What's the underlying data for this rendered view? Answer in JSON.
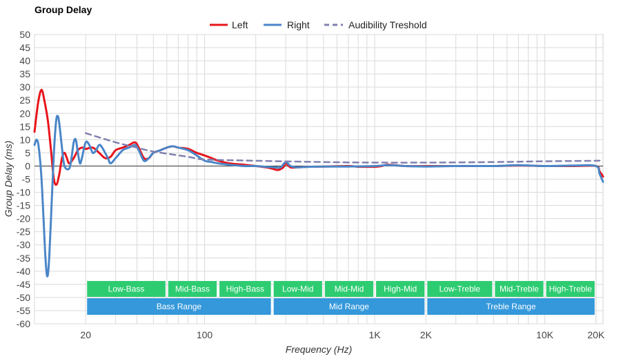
{
  "chart_data": {
    "type": "line",
    "title": "Group Delay",
    "xlabel": "Frequency (Hz)",
    "ylabel": "Group Delay (ms)",
    "x_scale": "log",
    "xlim": [
      10,
      22000
    ],
    "ylim": [
      -60,
      50
    ],
    "y_ticks": [
      50,
      45,
      40,
      35,
      30,
      25,
      20,
      15,
      10,
      5,
      0,
      -5,
      -10,
      -15,
      -20,
      -25,
      -30,
      -35,
      -40,
      -45,
      -50,
      -55,
      -60
    ],
    "x_tick_labels": [
      {
        "value": 20,
        "label": "20"
      },
      {
        "value": 100,
        "label": "100"
      },
      {
        "value": 1000,
        "label": "1K"
      },
      {
        "value": 2000,
        "label": "2K"
      },
      {
        "value": 10000,
        "label": "10K"
      },
      {
        "value": 20000,
        "label": "20K"
      }
    ],
    "grid": true,
    "legend_position": "top-center",
    "series": [
      {
        "name": "Left",
        "color": "#e8141b",
        "style": "solid",
        "points": [
          [
            10,
            13
          ],
          [
            10.5,
            24
          ],
          [
            11,
            29
          ],
          [
            11.5,
            24
          ],
          [
            12,
            17
          ],
          [
            12.5,
            6
          ],
          [
            13,
            -5
          ],
          [
            13.5,
            -7
          ],
          [
            14,
            -3
          ],
          [
            14.5,
            3
          ],
          [
            15,
            5
          ],
          [
            15.5,
            3
          ],
          [
            16,
            1
          ],
          [
            17,
            3
          ],
          [
            18,
            6
          ],
          [
            19,
            7
          ],
          [
            20,
            6.5
          ],
          [
            22,
            7
          ],
          [
            24,
            5
          ],
          [
            26,
            3
          ],
          [
            28,
            3.5
          ],
          [
            30,
            6
          ],
          [
            33,
            7
          ],
          [
            36,
            8
          ],
          [
            39,
            9
          ],
          [
            41,
            7
          ],
          [
            44,
            3
          ],
          [
            47,
            3
          ],
          [
            50,
            5
          ],
          [
            55,
            6
          ],
          [
            60,
            7
          ],
          [
            65,
            7.5
          ],
          [
            70,
            7
          ],
          [
            80,
            6.5
          ],
          [
            90,
            5
          ],
          [
            100,
            4
          ],
          [
            110,
            3
          ],
          [
            120,
            2
          ],
          [
            140,
            1
          ],
          [
            170,
            0.5
          ],
          [
            200,
            0
          ],
          [
            230,
            -0.5
          ],
          [
            250,
            -1
          ],
          [
            270,
            -1.5
          ],
          [
            290,
            -0.5
          ],
          [
            300,
            1
          ],
          [
            320,
            -0.5
          ],
          [
            350,
            -0.5
          ],
          [
            400,
            -0.3
          ],
          [
            500,
            -0.2
          ],
          [
            700,
            0
          ],
          [
            800,
            -0.3
          ],
          [
            900,
            -0.3
          ],
          [
            1000,
            -0.3
          ],
          [
            1100,
            0
          ],
          [
            1200,
            0.5
          ],
          [
            1500,
            0
          ],
          [
            2000,
            0
          ],
          [
            3000,
            0
          ],
          [
            5000,
            0
          ],
          [
            7000,
            0.2
          ],
          [
            10000,
            0
          ],
          [
            15000,
            0
          ],
          [
            20000,
            0
          ],
          [
            21000,
            -2
          ],
          [
            22000,
            -4
          ]
        ]
      },
      {
        "name": "Right",
        "color": "#4a86c8",
        "style": "solid",
        "points": [
          [
            10,
            8
          ],
          [
            10.3,
            10
          ],
          [
            10.6,
            7
          ],
          [
            11,
            -5
          ],
          [
            11.3,
            -20
          ],
          [
            11.6,
            -35
          ],
          [
            11.9,
            -42
          ],
          [
            12.2,
            -35
          ],
          [
            12.6,
            -15
          ],
          [
            13,
            5
          ],
          [
            13.4,
            17
          ],
          [
            13.7,
            19
          ],
          [
            14,
            16
          ],
          [
            14.5,
            7
          ],
          [
            15,
            0
          ],
          [
            16,
            -1
          ],
          [
            16.5,
            3
          ],
          [
            17,
            9
          ],
          [
            17.5,
            10
          ],
          [
            18,
            5
          ],
          [
            18.5,
            1
          ],
          [
            19,
            3
          ],
          [
            20,
            9
          ],
          [
            21,
            8
          ],
          [
            22,
            5
          ],
          [
            23,
            6
          ],
          [
            24,
            8
          ],
          [
            25,
            7
          ],
          [
            27,
            3
          ],
          [
            28,
            1
          ],
          [
            30,
            3
          ],
          [
            33,
            6
          ],
          [
            36,
            7
          ],
          [
            39,
            8
          ],
          [
            41,
            6
          ],
          [
            44,
            2
          ],
          [
            47,
            3
          ],
          [
            50,
            5
          ],
          [
            55,
            6
          ],
          [
            60,
            7
          ],
          [
            65,
            7.5
          ],
          [
            70,
            7
          ],
          [
            80,
            6
          ],
          [
            90,
            4
          ],
          [
            100,
            2
          ],
          [
            110,
            1.5
          ],
          [
            120,
            1
          ],
          [
            140,
            0.5
          ],
          [
            170,
            0
          ],
          [
            200,
            0
          ],
          [
            230,
            -0.3
          ],
          [
            260,
            -0.5
          ],
          [
            280,
            -0.5
          ],
          [
            300,
            1.5
          ],
          [
            320,
            0
          ],
          [
            350,
            -0.5
          ],
          [
            400,
            -0.3
          ],
          [
            500,
            -0.2
          ],
          [
            700,
            -0.2
          ],
          [
            1000,
            0
          ],
          [
            1200,
            0.3
          ],
          [
            1500,
            0
          ],
          [
            2000,
            -0.2
          ],
          [
            3000,
            0
          ],
          [
            5000,
            0
          ],
          [
            7000,
            0.3
          ],
          [
            10000,
            0
          ],
          [
            15000,
            0.2
          ],
          [
            20000,
            0
          ],
          [
            21000,
            -3
          ],
          [
            22000,
            -6
          ]
        ]
      },
      {
        "name": "Audibility Treshold",
        "color": "#8080b0",
        "style": "dashed",
        "points": [
          [
            20,
            12.5
          ],
          [
            30,
            9
          ],
          [
            40,
            7
          ],
          [
            50,
            5.5
          ],
          [
            80,
            3.5
          ],
          [
            100,
            2.5
          ],
          [
            200,
            2
          ],
          [
            500,
            1.5
          ],
          [
            1000,
            1.3
          ],
          [
            2000,
            1.3
          ],
          [
            5000,
            1.5
          ],
          [
            10000,
            1.8
          ],
          [
            21000,
            2
          ]
        ]
      }
    ],
    "ranges": {
      "sub": [
        {
          "label": "Low-Bass",
          "x0": 20,
          "x1": 60
        },
        {
          "label": "Mid-Bass",
          "x0": 60,
          "x1": 120
        },
        {
          "label": "High-Bass",
          "x0": 120,
          "x1": 250
        },
        {
          "label": "Low-Mid",
          "x0": 250,
          "x1": 500
        },
        {
          "label": "Mid-Mid",
          "x0": 500,
          "x1": 1000
        },
        {
          "label": "High-Mid",
          "x0": 1000,
          "x1": 2000
        },
        {
          "label": "Low-Treble",
          "x0": 2000,
          "x1": 5000
        },
        {
          "label": "Mid-Treble",
          "x0": 5000,
          "x1": 10000
        },
        {
          "label": "High-Treble",
          "x0": 10000,
          "x1": 20000
        }
      ],
      "main": [
        {
          "label": "Bass Range",
          "x0": 20,
          "x1": 250
        },
        {
          "label": "Mid Range",
          "x0": 250,
          "x1": 2000
        },
        {
          "label": "Treble Range",
          "x0": 2000,
          "x1": 20000
        }
      ],
      "sub_color": "#2ecc71",
      "main_color": "#3498db"
    }
  }
}
